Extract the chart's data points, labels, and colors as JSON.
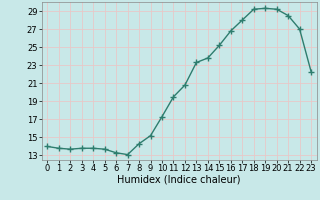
{
  "x": [
    0,
    1,
    2,
    3,
    4,
    5,
    6,
    7,
    8,
    9,
    10,
    11,
    12,
    13,
    14,
    15,
    16,
    17,
    18,
    19,
    20,
    21,
    22,
    23
  ],
  "y": [
    14.0,
    13.8,
    13.7,
    13.8,
    13.8,
    13.7,
    13.3,
    13.1,
    14.3,
    15.2,
    17.3,
    19.5,
    20.8,
    23.3,
    23.8,
    25.2,
    26.8,
    28.0,
    29.2,
    29.3,
    29.2,
    28.5,
    27.0,
    22.3
  ],
  "line_color": "#2e7d6e",
  "marker": "+",
  "markersize": 4,
  "linewidth": 1.0,
  "background_color": "#c8e8e8",
  "grid_color": "#e8c8c8",
  "xlabel": "Humidex (Indice chaleur)",
  "xlabel_fontsize": 7,
  "tick_fontsize": 6,
  "xlim": [
    -0.5,
    23.5
  ],
  "ylim": [
    12.5,
    30
  ],
  "yticks": [
    13,
    15,
    17,
    19,
    21,
    23,
    25,
    27,
    29
  ],
  "xticks": [
    0,
    1,
    2,
    3,
    4,
    5,
    6,
    7,
    8,
    9,
    10,
    11,
    12,
    13,
    14,
    15,
    16,
    17,
    18,
    19,
    20,
    21,
    22,
    23
  ]
}
